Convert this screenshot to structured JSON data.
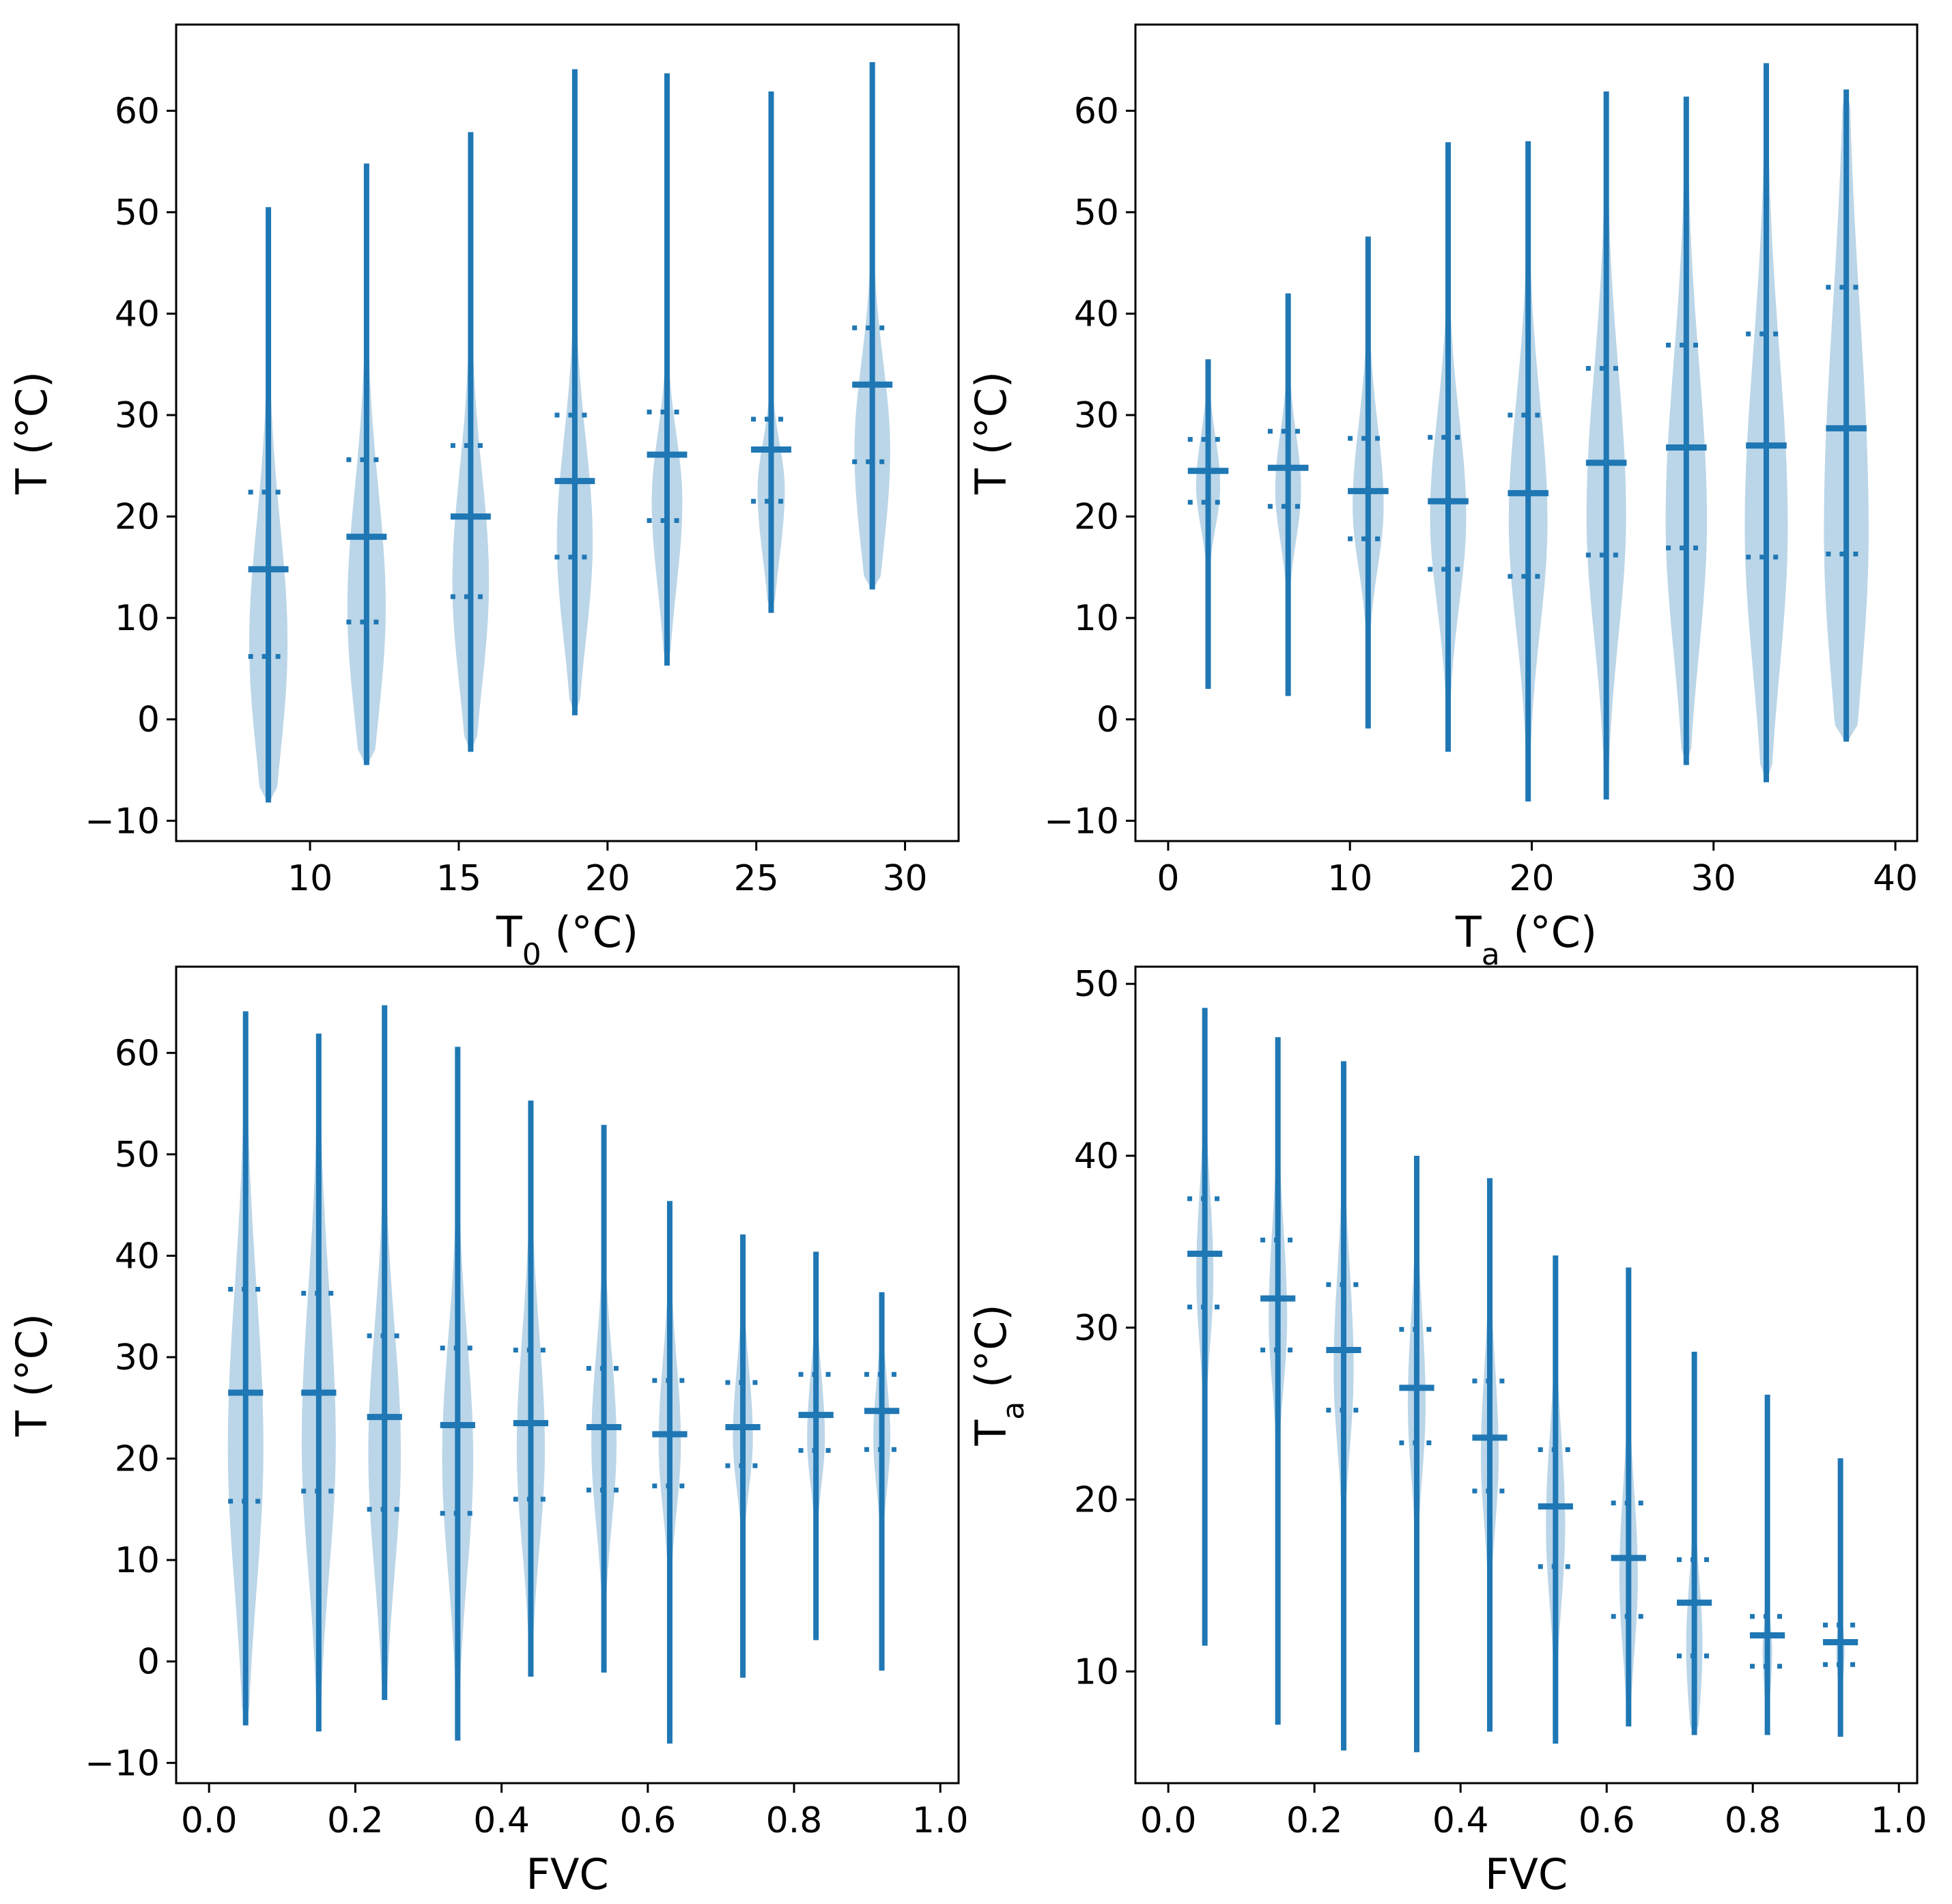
{
  "colors": {
    "violin_fill": "#1f77b4",
    "violin_fill_opacity": 0.3,
    "line": "#1f77b4",
    "axis": "#000000"
  },
  "chart_data": [
    {
      "type": "violin",
      "id": "panel-a",
      "xlabel": {
        "main": "T",
        "sub": "0",
        "unit": " (°C)"
      },
      "ylabel": {
        "main": "T",
        "sub": "",
        "unit": " (°C)"
      },
      "xlim": [
        5.5,
        31.8
      ],
      "ylim": [
        -12,
        68.5
      ],
      "xticks": [
        10,
        15,
        20,
        25,
        30
      ],
      "yticks": [
        -10,
        0,
        10,
        20,
        30,
        40,
        50,
        60
      ],
      "width": 2.6,
      "violins": [
        {
          "x": 8.6,
          "min": -8.2,
          "max": 50.5,
          "median": 14.8,
          "q1": 6.2,
          "q3": 22.4,
          "mode": 7.5,
          "spread": 0.45
        },
        {
          "x": 11.9,
          "min": -4.5,
          "max": 54.8,
          "median": 18.0,
          "q1": 9.6,
          "q3": 25.6,
          "mode": 11.0,
          "spread": 0.45
        },
        {
          "x": 15.4,
          "min": -3.2,
          "max": 57.9,
          "median": 20.0,
          "q1": 12.1,
          "q3": 27.0,
          "mode": 13.5,
          "spread": 0.43
        },
        {
          "x": 18.9,
          "min": 0.4,
          "max": 64.1,
          "median": 23.5,
          "q1": 16.0,
          "q3": 30.0,
          "mode": 17.5,
          "spread": 0.42
        },
        {
          "x": 22.0,
          "min": 5.3,
          "max": 63.7,
          "median": 26.1,
          "q1": 19.6,
          "q3": 30.3,
          "mode": 21.5,
          "spread": 0.36
        },
        {
          "x": 25.5,
          "min": 10.5,
          "max": 61.9,
          "median": 26.6,
          "q1": 21.5,
          "q3": 29.6,
          "mode": 22.6,
          "spread": 0.32
        },
        {
          "x": 28.9,
          "min": 12.8,
          "max": 64.8,
          "median": 33.0,
          "q1": 25.4,
          "q3": 38.6,
          "mode": 26.5,
          "spread": 0.42
        }
      ]
    },
    {
      "type": "violin",
      "id": "panel-b",
      "xlabel": {
        "main": "T",
        "sub": "a",
        "unit": " (°C)"
      },
      "ylabel": {
        "main": "T",
        "sub": "",
        "unit": " (°C)"
      },
      "xlim": [
        -1.8,
        41.2
      ],
      "ylim": [
        -12,
        68.5
      ],
      "xticks": [
        0,
        10,
        20,
        30,
        40
      ],
      "yticks": [
        -10,
        0,
        10,
        20,
        30,
        40,
        50,
        60
      ],
      "width": 4.3,
      "violins": [
        {
          "x": 2.2,
          "min": 3.0,
          "max": 35.5,
          "median": 24.5,
          "q1": 21.4,
          "q3": 27.6,
          "mode": 23.0,
          "spread": 0.28
        },
        {
          "x": 6.6,
          "min": 2.3,
          "max": 42.0,
          "median": 24.8,
          "q1": 21.0,
          "q3": 28.4,
          "mode": 22.6,
          "spread": 0.3
        },
        {
          "x": 11.0,
          "min": -0.9,
          "max": 47.6,
          "median": 22.5,
          "q1": 17.8,
          "q3": 27.7,
          "mode": 21.0,
          "spread": 0.36
        },
        {
          "x": 15.4,
          "min": -3.2,
          "max": 56.9,
          "median": 21.5,
          "q1": 14.8,
          "q3": 27.8,
          "mode": 20.0,
          "spread": 0.42
        },
        {
          "x": 19.8,
          "min": -8.1,
          "max": 57.0,
          "median": 22.3,
          "q1": 14.1,
          "q3": 30.0,
          "mode": 19.5,
          "spread": 0.45
        },
        {
          "x": 24.1,
          "min": -7.9,
          "max": 61.9,
          "median": 25.3,
          "q1": 16.2,
          "q3": 34.6,
          "mode": 20.0,
          "spread": 0.46
        },
        {
          "x": 28.5,
          "min": -4.5,
          "max": 61.4,
          "median": 26.8,
          "q1": 16.9,
          "q3": 36.9,
          "mode": 19.5,
          "spread": 0.48
        },
        {
          "x": 32.9,
          "min": -6.2,
          "max": 64.7,
          "median": 27.0,
          "q1": 16.0,
          "q3": 38.0,
          "mode": 19.0,
          "spread": 0.5
        },
        {
          "x": 37.3,
          "min": -2.2,
          "max": 62.1,
          "median": 28.7,
          "q1": 16.3,
          "q3": 42.6,
          "mode": 18.5,
          "spread": 0.52
        }
      ]
    },
    {
      "type": "violin",
      "id": "panel-c",
      "xlabel": {
        "main": "FVC",
        "sub": "",
        "unit": ""
      },
      "ylabel": {
        "main": "T",
        "sub": "",
        "unit": " (°C)"
      },
      "xlim": [
        -0.045,
        1.025
      ],
      "ylim": [
        -12,
        68.5
      ],
      "xticks": [
        0.0,
        0.2,
        0.4,
        0.6,
        0.8,
        1.0
      ],
      "yticks": [
        -10,
        0,
        10,
        20,
        30,
        40,
        50,
        60
      ],
      "width": 0.092,
      "violins": [
        {
          "x": 0.05,
          "min": -6.3,
          "max": 64.1,
          "median": 26.5,
          "q1": 15.8,
          "q3": 36.7,
          "mode": 21.0,
          "spread": 0.48
        },
        {
          "x": 0.15,
          "min": -6.9,
          "max": 61.9,
          "median": 26.5,
          "q1": 16.8,
          "q3": 36.3,
          "mode": 21.5,
          "spread": 0.46
        },
        {
          "x": 0.24,
          "min": -3.8,
          "max": 64.7,
          "median": 24.1,
          "q1": 15.0,
          "q3": 32.1,
          "mode": 20.5,
          "spread": 0.44
        },
        {
          "x": 0.34,
          "min": -7.8,
          "max": 60.6,
          "median": 23.3,
          "q1": 14.6,
          "q3": 30.9,
          "mode": 20.0,
          "spread": 0.42
        },
        {
          "x": 0.44,
          "min": -1.5,
          "max": 55.3,
          "median": 23.5,
          "q1": 16.0,
          "q3": 30.7,
          "mode": 21.0,
          "spread": 0.38
        },
        {
          "x": 0.54,
          "min": -1.1,
          "max": 52.9,
          "median": 23.1,
          "q1": 16.9,
          "q3": 28.9,
          "mode": 21.5,
          "spread": 0.34
        },
        {
          "x": 0.63,
          "min": -8.1,
          "max": 45.4,
          "median": 22.4,
          "q1": 17.3,
          "q3": 27.7,
          "mode": 21.5,
          "spread": 0.3
        },
        {
          "x": 0.73,
          "min": -1.6,
          "max": 42.1,
          "median": 23.1,
          "q1": 19.3,
          "q3": 27.5,
          "mode": 22.0,
          "spread": 0.27
        },
        {
          "x": 0.83,
          "min": 2.1,
          "max": 40.4,
          "median": 24.3,
          "q1": 20.8,
          "q3": 28.3,
          "mode": 22.0,
          "spread": 0.24
        },
        {
          "x": 0.92,
          "min": -0.9,
          "max": 36.4,
          "median": 24.7,
          "q1": 20.9,
          "q3": 28.3,
          "mode": 22.0,
          "spread": 0.23
        }
      ]
    },
    {
      "type": "violin",
      "id": "panel-d",
      "xlabel": {
        "main": "FVC",
        "sub": "",
        "unit": ""
      },
      "ylabel": {
        "main": "T",
        "sub": "a",
        "unit": " (°C)"
      },
      "xlim": [
        -0.045,
        1.025
      ],
      "ylim": [
        3.5,
        51.0
      ],
      "xticks": [
        0.0,
        0.2,
        0.4,
        0.6,
        0.8,
        1.0
      ],
      "yticks": [
        10,
        20,
        30,
        40,
        50
      ],
      "width": 0.092,
      "violins": [
        {
          "x": 0.05,
          "min": 11.5,
          "max": 48.6,
          "median": 34.3,
          "q1": 31.2,
          "q3": 37.5,
          "mode": 33.0,
          "spread": 0.23
        },
        {
          "x": 0.15,
          "min": 6.9,
          "max": 46.9,
          "median": 31.7,
          "q1": 28.7,
          "q3": 35.1,
          "mode": 30.5,
          "spread": 0.25
        },
        {
          "x": 0.24,
          "min": 5.4,
          "max": 45.5,
          "median": 28.7,
          "q1": 25.2,
          "q3": 32.5,
          "mode": 27.5,
          "spread": 0.27
        },
        {
          "x": 0.34,
          "min": 5.3,
          "max": 40.0,
          "median": 26.5,
          "q1": 23.3,
          "q3": 29.9,
          "mode": 25.5,
          "spread": 0.24
        },
        {
          "x": 0.44,
          "min": 6.5,
          "max": 38.7,
          "median": 23.6,
          "q1": 20.5,
          "q3": 26.9,
          "mode": 22.5,
          "spread": 0.24
        },
        {
          "x": 0.53,
          "min": 5.8,
          "max": 34.2,
          "median": 19.6,
          "q1": 16.1,
          "q3": 22.9,
          "mode": 18.5,
          "spread": 0.26
        },
        {
          "x": 0.63,
          "min": 6.8,
          "max": 33.5,
          "median": 16.6,
          "q1": 13.2,
          "q3": 19.8,
          "mode": 15.5,
          "spread": 0.25
        },
        {
          "x": 0.72,
          "min": 6.3,
          "max": 28.6,
          "median": 14.0,
          "q1": 10.9,
          "q3": 16.5,
          "mode": 11.5,
          "spread": 0.22
        },
        {
          "x": 0.82,
          "min": 6.3,
          "max": 26.1,
          "median": 12.1,
          "q1": 10.3,
          "q3": 13.2,
          "mode": 11.2,
          "spread": 0.13
        },
        {
          "x": 0.92,
          "min": 6.2,
          "max": 22.4,
          "median": 11.7,
          "q1": 10.4,
          "q3": 12.7,
          "mode": 11.2,
          "spread": 0.11
        }
      ]
    }
  ]
}
